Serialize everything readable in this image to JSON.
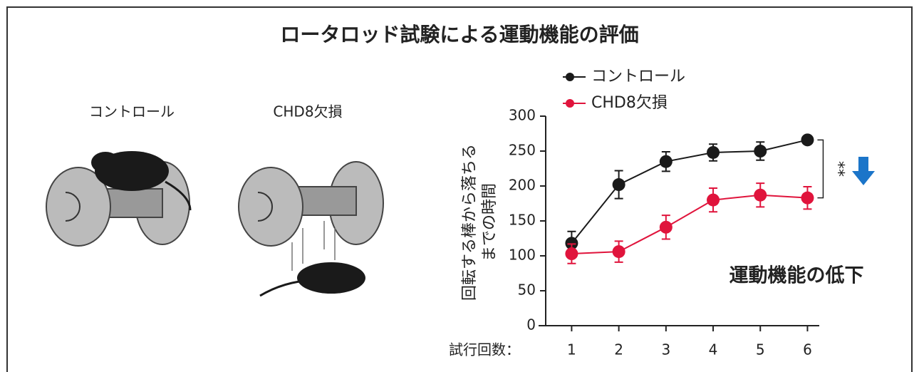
{
  "chart_data": {
    "type": "line",
    "title": "ロータロッド試験による運動機能の評価",
    "illustration_labels": [
      "コントロール",
      "CHD8欠損"
    ],
    "ylabel": [
      "回転する棒から落ちる",
      "までの時間"
    ],
    "xlabel": "試行回数：",
    "x": [
      1,
      2,
      3,
      4,
      5,
      6
    ],
    "xlim": [
      0.45,
      6.25
    ],
    "xticks": [
      1,
      2,
      3,
      4,
      5,
      6
    ],
    "ylim": [
      0,
      300
    ],
    "yticks": [
      0,
      50,
      100,
      150,
      200,
      250,
      300
    ],
    "series": [
      {
        "name": "コントロール",
        "color": "#1a1a1a",
        "values": [
          118,
          202,
          235,
          248,
          250,
          266
        ],
        "errors": [
          17,
          20,
          14,
          12,
          13,
          5
        ]
      },
      {
        "name": "CHD8欠損",
        "color": "#e0143c",
        "values": [
          103,
          106,
          141,
          180,
          187,
          183
        ],
        "errors": [
          14,
          15,
          17,
          17,
          17,
          16
        ]
      }
    ],
    "significance": "**",
    "annotation": "運動機能の低下",
    "annotation_color": "#1b75c9"
  }
}
